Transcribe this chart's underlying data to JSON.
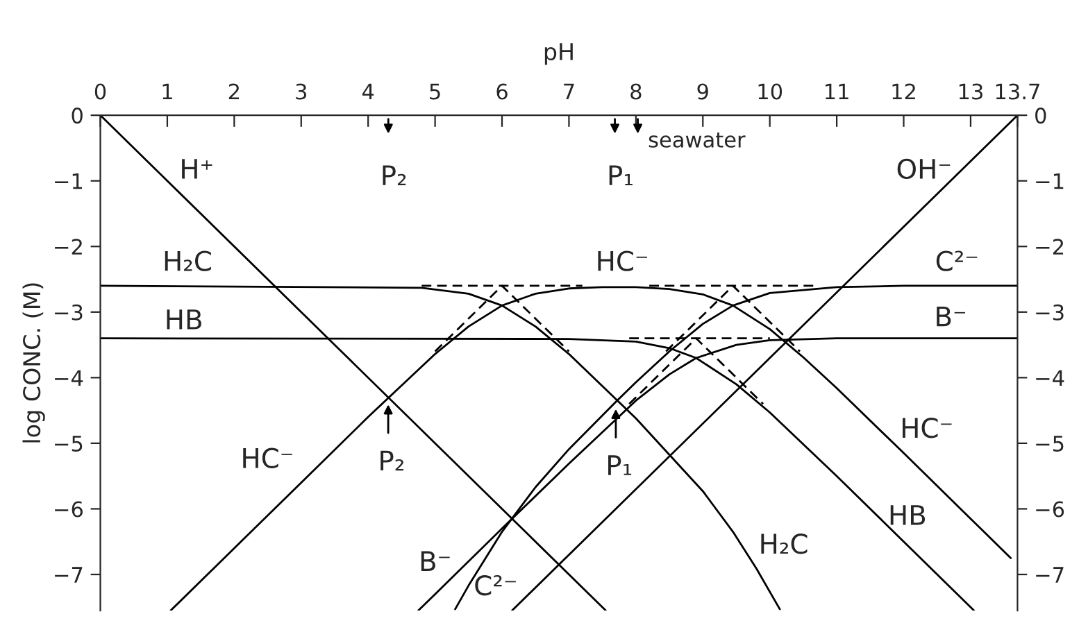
{
  "chart_data": {
    "type": "line",
    "xlabel": "pH",
    "ylabel": "log CONC. (M)",
    "xlim": [
      0,
      13.7
    ],
    "xticks": [
      0,
      1,
      2,
      3,
      4,
      5,
      6,
      7,
      8,
      9,
      10,
      11,
      12,
      13,
      {
        "value": 13.7,
        "label": "13.7"
      }
    ],
    "ylim": [
      -7.55,
      0
    ],
    "yticks": [
      0,
      {
        "value": -1,
        "label": "−1"
      },
      {
        "value": -2,
        "label": "−2"
      },
      {
        "value": -3,
        "label": "−3"
      },
      {
        "value": -4,
        "label": "−4"
      },
      {
        "value": -5,
        "label": "−5"
      },
      {
        "value": -6,
        "label": "−6"
      },
      {
        "value": -7,
        "label": "−7"
      }
    ],
    "y2lim": [
      -7.55,
      0
    ],
    "y2ticks": [
      0,
      {
        "value": -1,
        "label": "−1"
      },
      {
        "value": -2,
        "label": "−2"
      },
      {
        "value": -3,
        "label": "−3"
      },
      {
        "value": -4,
        "label": "−4"
      },
      {
        "value": -5,
        "label": "−5"
      },
      {
        "value": -6,
        "label": "−6"
      },
      {
        "value": -7,
        "label": "−7"
      }
    ],
    "grid": false,
    "legend": false,
    "marker": "none",
    "line_style": "solid",
    "series": [
      {
        "color": "#000000",
        "x": [
          0,
          7.55
        ],
        "values": [
          0,
          -7.55
        ]
      },
      {
        "color": "#000000",
        "x": [
          6.15,
          13.7
        ],
        "values": [
          -7.55,
          0
        ]
      },
      {
        "color": "#000000",
        "x": [
          0,
          4.8,
          5.5,
          6,
          6.5,
          7,
          8,
          9,
          9.45,
          9.8,
          10.15
        ],
        "values": [
          -2.6,
          -2.63,
          -2.72,
          -2.9,
          -3.22,
          -3.64,
          -4.62,
          -5.73,
          -6.35,
          -6.91,
          -7.53
        ]
      },
      {
        "color": "#000000",
        "x": [
          1.05,
          2,
          3,
          4,
          5,
          5.5,
          6,
          6.5,
          7,
          7.5,
          8,
          8.5,
          9,
          9.45,
          10,
          10.5,
          11,
          12,
          13,
          13.6
        ],
        "values": [
          -7.55,
          -6.6,
          -5.6,
          -4.6,
          -3.64,
          -3.22,
          -2.9,
          -2.72,
          -2.64,
          -2.62,
          -2.62,
          -2.65,
          -2.73,
          -2.9,
          -3.26,
          -3.69,
          -4.16,
          -5.15,
          -6.15,
          -6.75
        ]
      },
      {
        "color": "#000000",
        "x": [
          5.3,
          5.5,
          6,
          6.5,
          7,
          7.7,
          8,
          8.5,
          9,
          9.45,
          10,
          11,
          12,
          13.7
        ],
        "values": [
          -7.53,
          -7.17,
          -6.35,
          -5.67,
          -5.09,
          -4.37,
          -4.07,
          -3.6,
          -3.18,
          -2.9,
          -2.71,
          -2.62,
          -2.6,
          -2.6
        ]
      },
      {
        "color": "#000000",
        "x": [
          0,
          7,
          8,
          8.5,
          8.9,
          9.5,
          10,
          11,
          12,
          13,
          13.05
        ],
        "values": [
          -3.4,
          -3.41,
          -3.45,
          -3.55,
          -3.7,
          -4.1,
          -4.53,
          -5.5,
          -6.5,
          -7.5,
          -7.55
        ]
      },
      {
        "color": "#000000",
        "x": [
          4.75,
          5,
          6,
          7,
          8,
          8.5,
          8.9,
          9.5,
          10,
          11,
          13.7
        ],
        "values": [
          -7.55,
          -7.3,
          -6.3,
          -5.31,
          -4.35,
          -3.95,
          -3.7,
          -3.5,
          -3.43,
          -3.4,
          -3.4
        ]
      },
      {
        "color": "#000000",
        "line_style": "dashed",
        "x": [
          5,
          6,
          7
        ],
        "values": [
          -3.6,
          -2.6,
          -3.6
        ]
      },
      {
        "color": "#000000",
        "line_style": "dashed",
        "x": [
          8.45,
          9.45,
          10.45
        ],
        "values": [
          -3.6,
          -2.6,
          -3.6
        ]
      },
      {
        "color": "#000000",
        "line_style": "dashed",
        "x": [
          4.8,
          7.2
        ],
        "values": [
          -2.6,
          -2.6
        ]
      },
      {
        "color": "#000000",
        "line_style": "dashed",
        "x": [
          8.2,
          10.7
        ],
        "values": [
          -2.6,
          -2.6
        ]
      },
      {
        "color": "#000000",
        "line_style": "dashed",
        "x": [
          7.9,
          8.9,
          9.9
        ],
        "values": [
          -4.4,
          -3.4,
          -4.4
        ]
      },
      {
        "color": "#000000",
        "line_style": "dashed",
        "x": [
          7.9,
          10
        ],
        "values": [
          -3.4,
          -3.4
        ]
      }
    ],
    "annotations": [
      "P₂",
      "P₁",
      "seawater",
      {
        "text": "P₂",
        "x": 4.3,
        "y": -4.3
      },
      {
        "text": "P₁",
        "x": 7.7,
        "y": -4.37
      },
      "H⁺",
      "OH⁻",
      "H₂C",
      "HC⁻",
      "C²⁻",
      "HB",
      "B⁻",
      "HC⁻",
      "HC⁻",
      "HB",
      "H₂C",
      "B⁻",
      "C²⁻"
    ]
  }
}
